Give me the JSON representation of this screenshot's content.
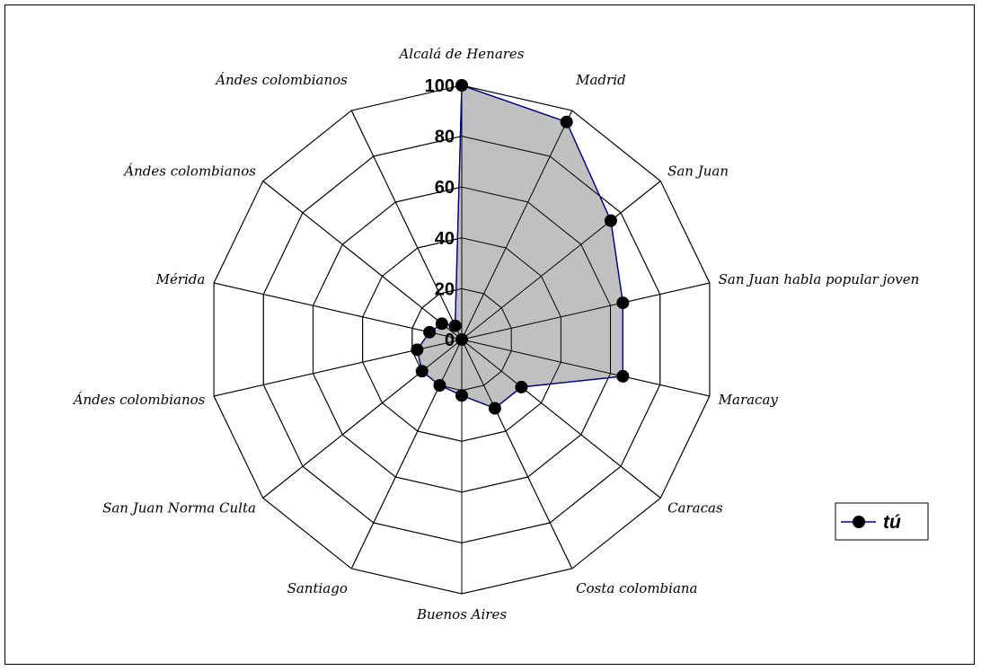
{
  "chart_data": {
    "type": "radar",
    "title": "",
    "categories": [
      "Alcalá de Henares",
      "Madrid",
      "San Juan",
      "San Juan habla popular joven",
      "Maracay",
      "Caracas",
      "Costa colombiana",
      "Buenos Aires",
      "Santiago",
      "San Juan Norma Culta",
      "Ándes colombianos",
      "Mérida",
      "Ándes colombianos",
      "Ándes colombianos"
    ],
    "series": [
      {
        "name": "tú",
        "values": [
          100,
          95,
          75,
          65,
          65,
          30,
          30,
          22,
          20,
          20,
          18,
          13,
          10,
          6
        ]
      }
    ],
    "rlim": [
      0,
      100
    ],
    "ticks": [
      "0",
      "20",
      "40",
      "60",
      "80",
      "100"
    ],
    "tick_values": [
      0,
      20,
      40,
      60,
      80,
      100
    ],
    "grid": true,
    "legend_position": "right",
    "colors": {
      "fill": "#c0c0c0",
      "line": "#000080",
      "marker": "#000000",
      "grid": "#000000"
    }
  }
}
